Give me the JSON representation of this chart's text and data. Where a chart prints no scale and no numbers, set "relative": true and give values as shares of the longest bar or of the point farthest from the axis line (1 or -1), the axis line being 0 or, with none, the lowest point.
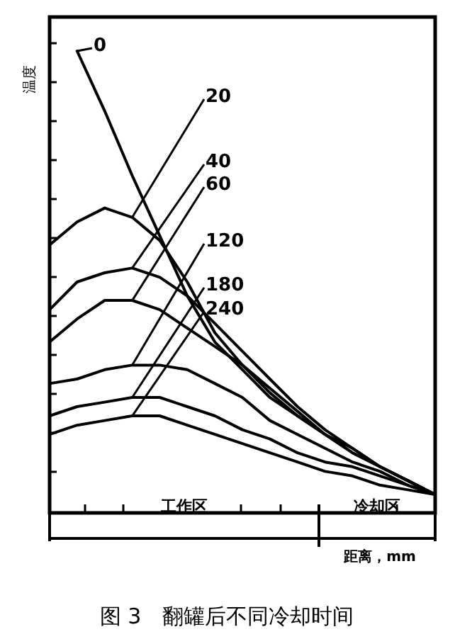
{
  "chart_data": {
    "type": "line",
    "relative": true,
    "title": "图 3　翻罐后不同冷却时间",
    "xlabel": "距离，mm",
    "ylabel": "温度",
    "line_style": "solid",
    "categories": [
      null,
      null,
      null,
      null,
      null,
      null,
      null,
      null,
      null,
      null,
      null,
      null,
      null,
      null,
      null
    ],
    "series": [
      {
        "name": "0",
        "color": "#000000",
        "values": [
          null,
          1.0,
          0.87,
          0.73,
          0.6,
          0.47,
          0.37,
          0.31,
          0.25,
          0.21,
          0.17,
          0.13,
          0.1,
          0.07,
          0.04
        ]
      },
      {
        "name": "20",
        "color": "#000000",
        "values": [
          0.58,
          0.63,
          0.66,
          0.64,
          0.59,
          0.5,
          0.39,
          0.32,
          0.26,
          0.21,
          0.17,
          0.13,
          0.1,
          0.07,
          0.04
        ]
      },
      {
        "name": "40",
        "color": "#000000",
        "values": [
          0.44,
          0.5,
          0.52,
          0.53,
          0.51,
          0.47,
          0.41,
          0.35,
          0.29,
          0.23,
          0.18,
          0.14,
          0.1,
          0.07,
          0.04
        ]
      },
      {
        "name": "60",
        "color": "#000000",
        "values": [
          0.37,
          0.42,
          0.46,
          0.46,
          0.44,
          0.4,
          0.36,
          0.32,
          0.27,
          0.22,
          0.17,
          0.14,
          0.1,
          0.07,
          0.04
        ]
      },
      {
        "name": "120",
        "color": "#000000",
        "values": [
          0.28,
          0.29,
          0.31,
          0.32,
          0.32,
          0.31,
          0.28,
          0.25,
          0.2,
          0.17,
          0.14,
          0.11,
          0.09,
          0.06,
          0.04
        ]
      },
      {
        "name": "180",
        "color": "#000000",
        "values": [
          0.21,
          0.23,
          0.24,
          0.25,
          0.25,
          0.23,
          0.21,
          0.18,
          0.16,
          0.13,
          0.11,
          0.1,
          0.08,
          0.06,
          0.04
        ]
      },
      {
        "name": "240",
        "color": "#000000",
        "values": [
          0.17,
          0.19,
          0.2,
          0.21,
          0.21,
          0.19,
          0.17,
          0.15,
          0.13,
          0.11,
          0.09,
          0.08,
          0.06,
          0.05,
          0.04
        ]
      }
    ],
    "annotations": [
      "工作区",
      "冷却区"
    ]
  }
}
